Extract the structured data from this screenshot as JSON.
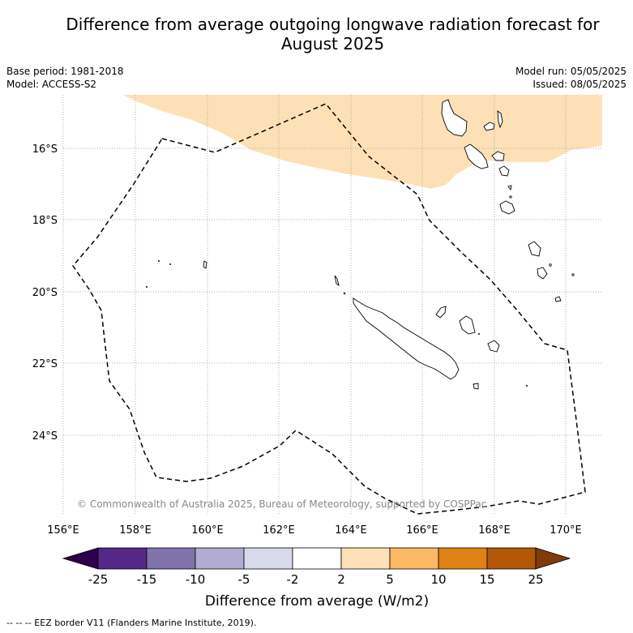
{
  "title_line1": "Difference from average outgoing longwave radiation forecast for",
  "title_line2": "August 2025",
  "base_period": "Base period: 1981-2018",
  "model": "Model: ACCESS-S2",
  "model_run": "Model run: 05/05/2025",
  "issued": "Issued: 08/05/2025",
  "lat_labels": [
    "16°S",
    "18°S",
    "20°S",
    "22°S",
    "24°S"
  ],
  "lon_labels": [
    "156°E",
    "158°E",
    "160°E",
    "162°E",
    "164°E",
    "166°E",
    "168°E",
    "170°E"
  ],
  "copyright": "© Commonwealth of Australia 2025, Bureau of Meteorology, supported by COSPPac",
  "colorbar": {
    "title": "Difference from average (W/m2)",
    "tick_labels": [
      "-25",
      "-15",
      "-10",
      "-5",
      "-2",
      "2",
      "5",
      "10",
      "15",
      "25"
    ],
    "colors": [
      "#2d004b",
      "#542788",
      "#8073ac",
      "#b2abd2",
      "#d8daeb",
      "#ffffff",
      "#fee0b6",
      "#fdb863",
      "#e08214",
      "#b35806",
      "#7f3b08"
    ]
  },
  "legend_text": "-- -- -- EEZ border V11 (Flanders Marine Institute, 2019).",
  "legend_dash": "--  --"
}
